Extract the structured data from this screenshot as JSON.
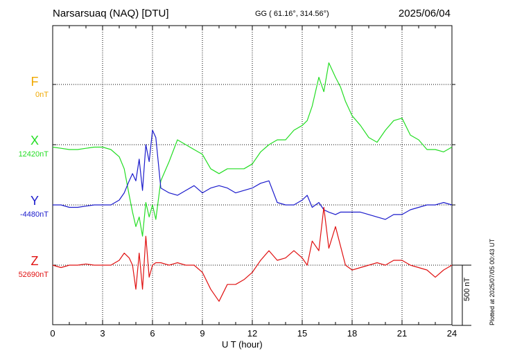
{
  "header": {
    "station": "Narsarsuaq (NAQ)  [DTU]",
    "coords": "GG ( 61.16°, 314.56°)",
    "date": "2025/06/04"
  },
  "footer": {
    "xlabel": "U T (hour)",
    "scale_label": "500 nT",
    "plotted": "Plotted at 2025/07/05 00:43 UT"
  },
  "colors": {
    "F": "#f0a800",
    "X": "#22dd22",
    "Y": "#1a1acc",
    "Z": "#e01010"
  },
  "chart_data": {
    "type": "line",
    "title": "Narsarsuaq (NAQ)  [DTU]",
    "xlabel": "U T (hour)",
    "ylabel": "",
    "xlim": [
      0,
      24
    ],
    "x_ticks": [
      "0",
      "3",
      "6",
      "9",
      "12",
      "15",
      "18",
      "21",
      "24"
    ],
    "grid": true,
    "scale_bar": "500 nT",
    "series": [
      {
        "name": "F",
        "baseline": "0nT",
        "x": [],
        "values": []
      },
      {
        "name": "X",
        "baseline": "12420nT",
        "x": [
          0,
          0.5,
          1,
          1.5,
          2,
          2.5,
          3,
          3.5,
          4,
          4.3,
          4.6,
          4.8,
          5,
          5.2,
          5.4,
          5.6,
          5.8,
          6,
          6.2,
          6.5,
          7,
          7.5,
          8,
          8.5,
          9,
          9.5,
          10,
          10.5,
          11,
          11.5,
          12,
          12.5,
          13,
          13.5,
          14,
          14.5,
          15,
          15.3,
          15.6,
          16,
          16.3,
          16.6,
          17,
          17.3,
          17.6,
          18,
          18.5,
          19,
          19.5,
          20,
          20.5,
          21,
          21.5,
          22,
          22.5,
          23,
          23.5,
          24
        ],
        "values": [
          -20,
          -30,
          -40,
          -40,
          -30,
          -20,
          -20,
          -40,
          -100,
          -200,
          -420,
          -560,
          -680,
          -600,
          -760,
          -480,
          -600,
          -500,
          -620,
          -300,
          -140,
          40,
          0,
          -40,
          -80,
          -200,
          -240,
          -200,
          -200,
          -200,
          -160,
          -60,
          0,
          40,
          40,
          120,
          160,
          200,
          320,
          560,
          440,
          680,
          560,
          480,
          360,
          240,
          160,
          60,
          20,
          120,
          200,
          220,
          80,
          40,
          -40,
          -40,
          -60,
          -20
        ]
      },
      {
        "name": "Y",
        "baseline": "-4480nT",
        "x": [
          0,
          0.5,
          1,
          1.5,
          2,
          2.5,
          3,
          3.5,
          4,
          4.3,
          4.6,
          4.8,
          5,
          5.2,
          5.4,
          5.6,
          5.8,
          6,
          6.2,
          6.5,
          7,
          7.5,
          8,
          8.5,
          9,
          9.5,
          10,
          10.5,
          11,
          11.5,
          12,
          12.5,
          13,
          13.5,
          14,
          14.5,
          15,
          15.3,
          15.6,
          16,
          16.3,
          16.6,
          17,
          17.3,
          17.6,
          18,
          18.5,
          19,
          19.5,
          20,
          20.5,
          21,
          21.5,
          22,
          22.5,
          23,
          23.5,
          24
        ],
        "values": [
          0,
          0,
          -20,
          -20,
          -10,
          0,
          0,
          0,
          40,
          100,
          200,
          260,
          200,
          380,
          120,
          500,
          360,
          620,
          560,
          140,
          100,
          80,
          120,
          160,
          100,
          140,
          160,
          140,
          100,
          120,
          140,
          180,
          200,
          20,
          0,
          0,
          40,
          80,
          -20,
          20,
          -40,
          -60,
          -80,
          -60,
          -60,
          -60,
          -60,
          -80,
          -100,
          -120,
          -80,
          -80,
          -40,
          -20,
          0,
          0,
          20,
          0
        ]
      },
      {
        "name": "Z",
        "baseline": "52690nT",
        "x": [
          0,
          0.5,
          1,
          1.5,
          2,
          2.5,
          3,
          3.5,
          4,
          4.3,
          4.6,
          4.8,
          5,
          5.2,
          5.4,
          5.6,
          5.8,
          6,
          6.2,
          6.5,
          7,
          7.5,
          8,
          8.5,
          9,
          9.5,
          10,
          10.5,
          11,
          11.5,
          12,
          12.5,
          13,
          13.5,
          14,
          14.5,
          15,
          15.3,
          15.6,
          16,
          16.3,
          16.6,
          17,
          17.3,
          17.6,
          18,
          18.5,
          19,
          19.5,
          20,
          20.5,
          21,
          21.5,
          22,
          22.5,
          23,
          23.5,
          24
        ],
        "values": [
          0,
          -20,
          0,
          0,
          10,
          0,
          0,
          0,
          40,
          100,
          60,
          0,
          -200,
          100,
          -200,
          240,
          -100,
          0,
          20,
          20,
          0,
          20,
          0,
          0,
          -60,
          -200,
          -300,
          -160,
          -160,
          -120,
          -60,
          40,
          120,
          40,
          60,
          120,
          60,
          0,
          200,
          120,
          480,
          140,
          320,
          160,
          0,
          -40,
          -20,
          0,
          20,
          0,
          40,
          40,
          0,
          -20,
          -40,
          -100,
          -40,
          0
        ]
      }
    ]
  }
}
